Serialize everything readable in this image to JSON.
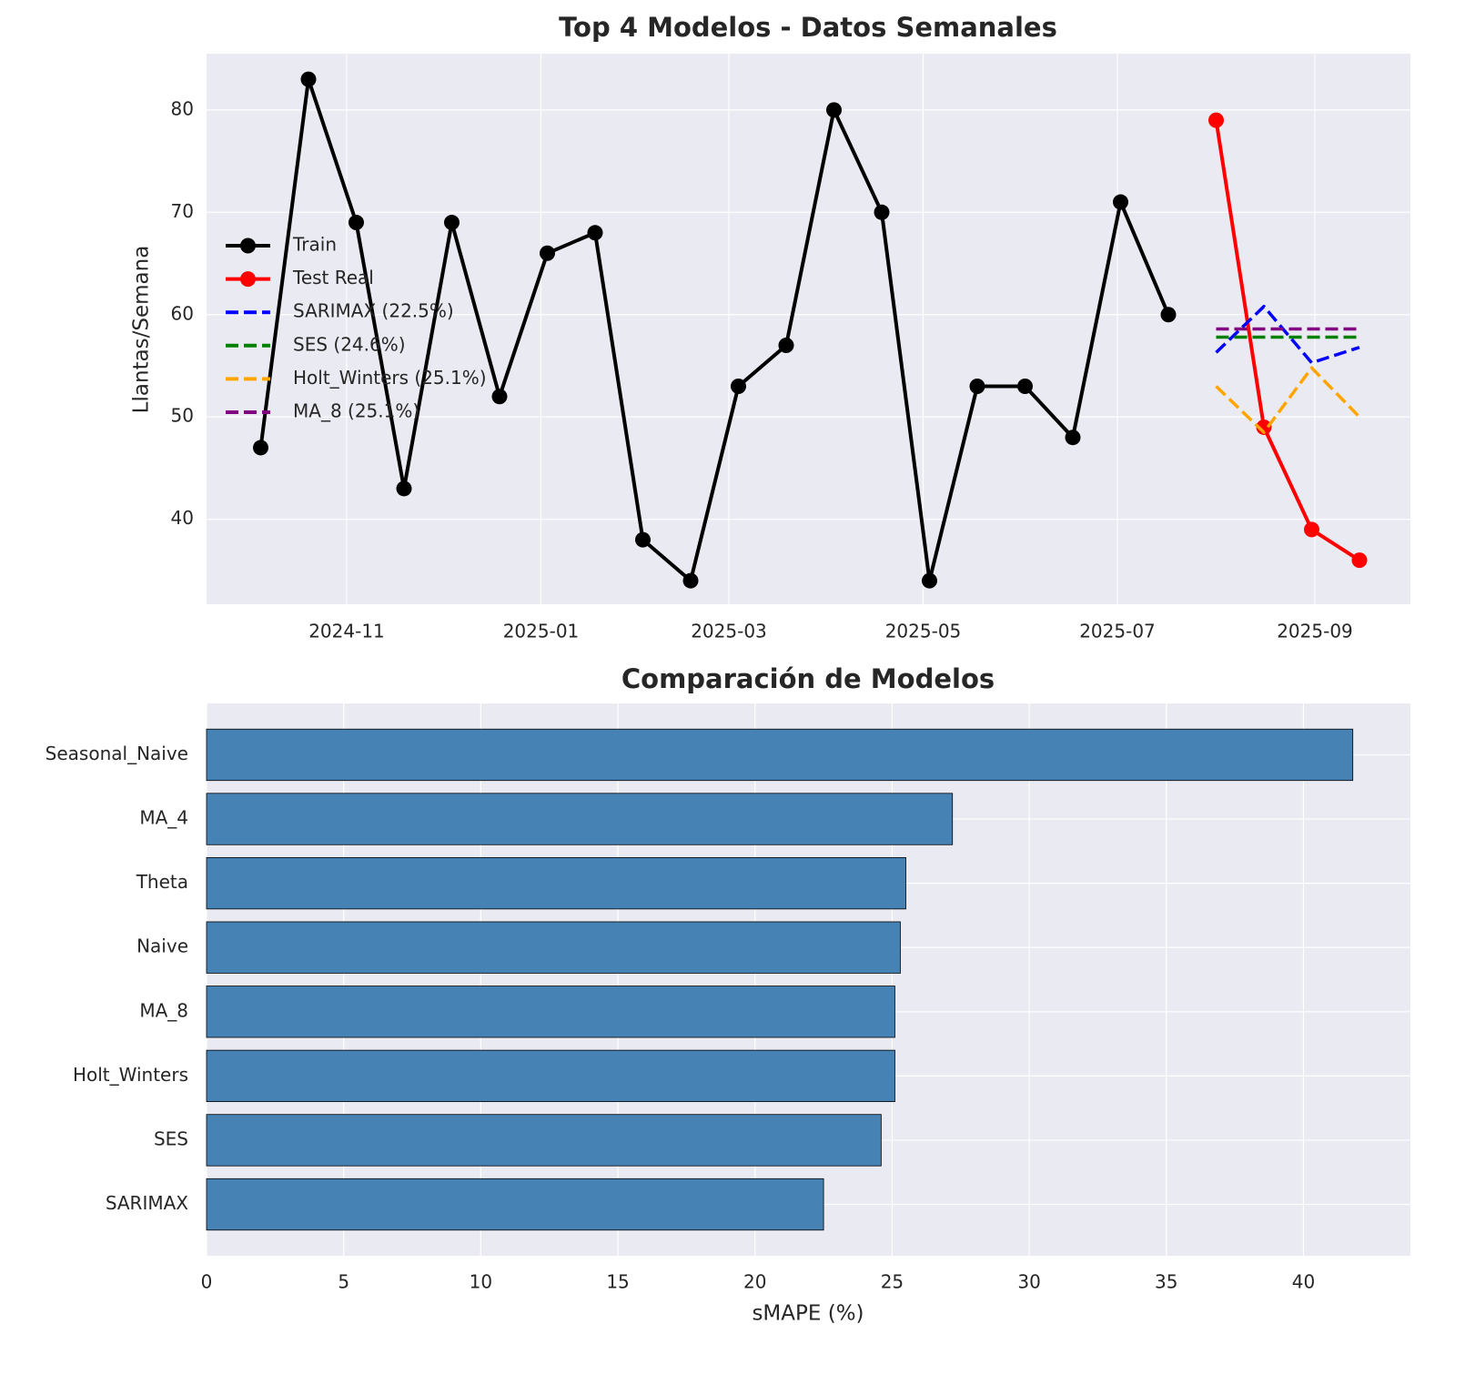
{
  "chart_data": [
    {
      "type": "line",
      "title": "Top 4 Modelos - Datos Semanales",
      "ylabel": "Llantas/Semana",
      "xlim": [
        "2024-09-18",
        "2025-10-01"
      ],
      "ylim": [
        31.7,
        85.5
      ],
      "yticks": [
        40,
        50,
        60,
        70,
        80
      ],
      "xticks": [
        {
          "value": "2024-11-01",
          "label": "2024-11"
        },
        {
          "value": "2025-01-01",
          "label": "2025-01"
        },
        {
          "value": "2025-03-01",
          "label": "2025-03"
        },
        {
          "value": "2025-05-01",
          "label": "2025-05"
        },
        {
          "value": "2025-07-01",
          "label": "2025-07"
        },
        {
          "value": "2025-09-01",
          "label": "2025-09"
        }
      ],
      "grid": true,
      "legend": "center left",
      "series": [
        {
          "name": "Train",
          "color": "#000000",
          "linestyle": "solid",
          "marker": "o",
          "x": [
            "2024-10-05",
            "2024-10-20",
            "2024-11-04",
            "2024-11-19",
            "2024-12-04",
            "2024-12-19",
            "2025-01-03",
            "2025-01-18",
            "2025-02-02",
            "2025-02-17",
            "2025-03-04",
            "2025-03-19",
            "2025-04-03",
            "2025-04-18",
            "2025-05-03",
            "2025-05-18",
            "2025-06-02",
            "2025-06-17",
            "2025-07-02",
            "2025-07-17"
          ],
          "values": [
            47,
            83,
            69,
            43,
            69,
            52,
            66,
            68,
            38,
            34,
            53,
            57,
            80,
            70,
            34,
            53,
            53,
            48,
            71,
            60
          ]
        },
        {
          "name": "Test Real",
          "color": "#ff0000",
          "linestyle": "solid",
          "marker": "o",
          "x": [
            "2025-08-01",
            "2025-08-16",
            "2025-08-31",
            "2025-09-15"
          ],
          "values": [
            79,
            49,
            39,
            36
          ]
        },
        {
          "name": "SARIMAX (22.5%)",
          "color": "#0000ff",
          "linestyle": "dashed",
          "x": [
            "2025-08-01",
            "2025-08-16",
            "2025-08-31",
            "2025-09-15"
          ],
          "values": [
            56.3,
            60.8,
            55.3,
            56.8
          ]
        },
        {
          "name": "SES (24.6%)",
          "color": "#008000",
          "linestyle": "dashed",
          "x": [
            "2025-08-01",
            "2025-08-16",
            "2025-08-31",
            "2025-09-15"
          ],
          "values": [
            57.8,
            57.8,
            57.8,
            57.8
          ]
        },
        {
          "name": "Holt_Winters (25.1%)",
          "color": "#ffa500",
          "linestyle": "dashed",
          "x": [
            "2025-08-01",
            "2025-08-16",
            "2025-08-31",
            "2025-09-15"
          ],
          "values": [
            53,
            48.5,
            54.8,
            50
          ]
        },
        {
          "name": "MA_8 (25.1%)",
          "color": "#800080",
          "linestyle": "dashed",
          "x": [
            "2025-08-01",
            "2025-08-16",
            "2025-08-31",
            "2025-09-15"
          ],
          "values": [
            58.6,
            58.6,
            58.6,
            58.6
          ]
        }
      ]
    },
    {
      "type": "barh",
      "title": "Comparación de Modelos",
      "xlabel": "sMAPE (%)",
      "color": "#4682b4",
      "categories": [
        "Seasonal_Naive",
        "MA_4",
        "Theta",
        "Naive",
        "MA_8",
        "Holt_Winters",
        "SES",
        "SARIMAX"
      ],
      "values": [
        41.8,
        27.2,
        25.5,
        25.3,
        25.1,
        25.1,
        24.6,
        22.5
      ],
      "xlim": [
        0,
        43.9
      ],
      "xticks": [
        0,
        5,
        10,
        15,
        20,
        25,
        30,
        35,
        40
      ],
      "grid": true
    }
  ]
}
